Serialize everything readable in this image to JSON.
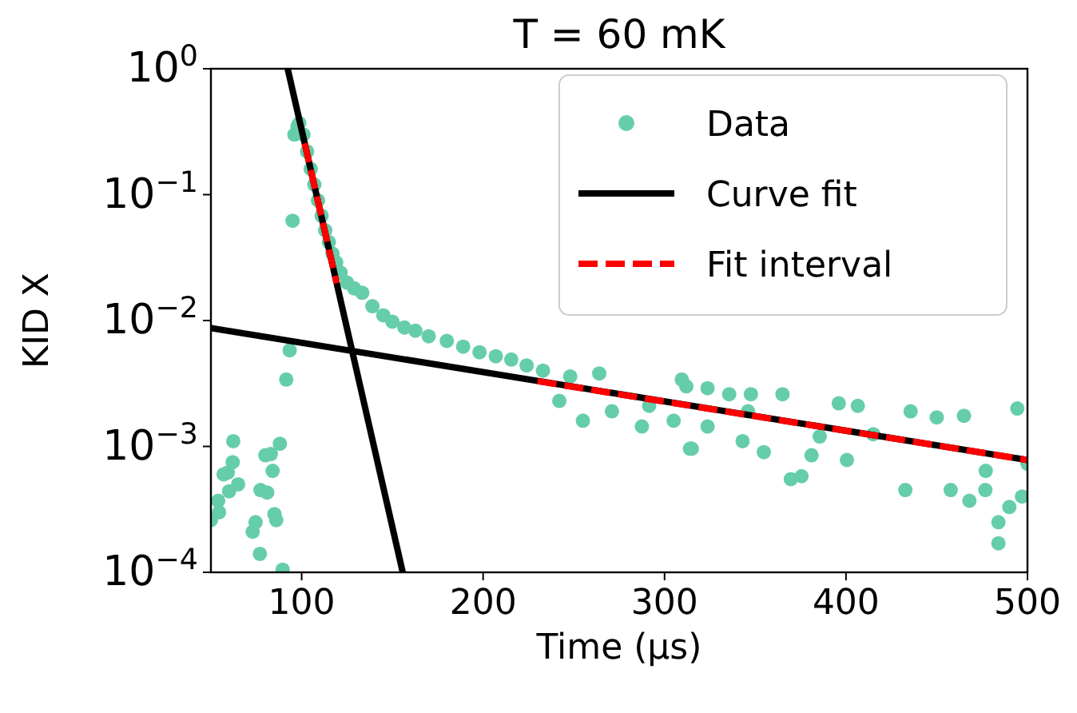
{
  "chart_data": {
    "type": "scatter",
    "title": "T = 60 mK",
    "xlabel": "Time (μs)",
    "ylabel": "KID X",
    "log": "y",
    "xlim": [
      50,
      500
    ],
    "xticks": [
      100,
      200,
      300,
      400,
      500
    ],
    "ylim": [
      0.0001,
      1
    ],
    "yticks": [
      {
        "value": 0.0001,
        "label": "10$^{−4}$"
      },
      {
        "value": 0.001,
        "label": "10$^{−3}$"
      },
      {
        "value": 0.01,
        "label": "10$^{−2}$"
      },
      {
        "value": 0.1,
        "label": "10$^{−1}$"
      },
      {
        "value": 1,
        "label": "10$^{0}$"
      }
    ],
    "legend": "top right",
    "grid": false,
    "series": [
      {
        "name": "Data",
        "marker": "circle",
        "color": "#66cdaa",
        "x": [
          50,
          54,
          54.5,
          57,
          59.3,
          60,
          62,
          62.3,
          65,
          73,
          74.6,
          77,
          77.3,
          80,
          81,
          83,
          84,
          85,
          86,
          88,
          89.5,
          91.5,
          93.4,
          95,
          96,
          97.7,
          98.7,
          101,
          103,
          105,
          107,
          109,
          111,
          113,
          115,
          117,
          119,
          121.5,
          125,
          129,
          133.4,
          139,
          145,
          150,
          156.6,
          162.7,
          170,
          180,
          189,
          198,
          207,
          215.5,
          224,
          233,
          242,
          248,
          255,
          264,
          271,
          287.5,
          291.5,
          305,
          309.5,
          312,
          314,
          315,
          323.7,
          323.7,
          335.6,
          343,
          346,
          347.6,
          354.7,
          365,
          369.6,
          375.5,
          381,
          385.5,
          396,
          400.5,
          406.5,
          415,
          432.7,
          435.6,
          450,
          457.7,
          465,
          468,
          476.8,
          477,
          484,
          484,
          490,
          494.4,
          497,
          500
        ],
        "values": [
          0.00026,
          0.00037,
          0.0003,
          0.0006,
          0.00062,
          0.00044,
          0.00075,
          0.0011,
          0.0005,
          0.00021,
          0.00025,
          0.00014,
          0.00045,
          0.00085,
          0.00043,
          0.00087,
          0.00064,
          0.00029,
          0.00026,
          0.00105,
          0.000105,
          0.0034,
          0.0058,
          0.062,
          0.3,
          0.35,
          0.37,
          0.3,
          0.22,
          0.16,
          0.12,
          0.09,
          0.068,
          0.052,
          0.042,
          0.034,
          0.029,
          0.024,
          0.02,
          0.018,
          0.0166,
          0.013,
          0.011,
          0.0098,
          0.0088,
          0.0083,
          0.0075,
          0.0069,
          0.0062,
          0.0056,
          0.0052,
          0.0049,
          0.0044,
          0.004,
          0.0023,
          0.0036,
          0.0016,
          0.0038,
          0.0019,
          0.00144,
          0.0021,
          0.0016,
          0.0034,
          0.003,
          0.00096,
          0.00096,
          0.0029,
          0.00144,
          0.0026,
          0.0011,
          0.0019,
          0.0026,
          0.0009,
          0.0026,
          0.00055,
          0.00058,
          0.00085,
          0.0012,
          0.0022,
          0.00078,
          0.0021,
          0.00125,
          0.00045,
          0.0019,
          0.0017,
          0.00045,
          0.00175,
          0.00037,
          0.00045,
          0.00064,
          0.00025,
          0.00017,
          0.00033,
          0.002,
          0.0004,
          0.00073
        ]
      },
      {
        "name": "Curve fit",
        "type": "line",
        "color": "#000000",
        "line_style": "solid",
        "x": [
          92.3,
          155.7
        ],
        "values": [
          1,
          0.0001
        ]
      },
      {
        "type": "line",
        "color": "#000000",
        "line_style": "solid",
        "x": [
          50,
          500
        ],
        "values": [
          0.0087,
          0.00078
        ]
      },
      {
        "name": "Fit interval",
        "type": "line",
        "color": "#ff0000",
        "line_style": "dashed",
        "x": [
          101.7,
          119.3
        ],
        "values": [
          0.255,
          0.0198
        ]
      },
      {
        "type": "line",
        "color": "#ff0000",
        "line_style": "dashed",
        "x": [
          230,
          500
        ],
        "values": [
          0.0033,
          0.00078
        ]
      }
    ]
  }
}
